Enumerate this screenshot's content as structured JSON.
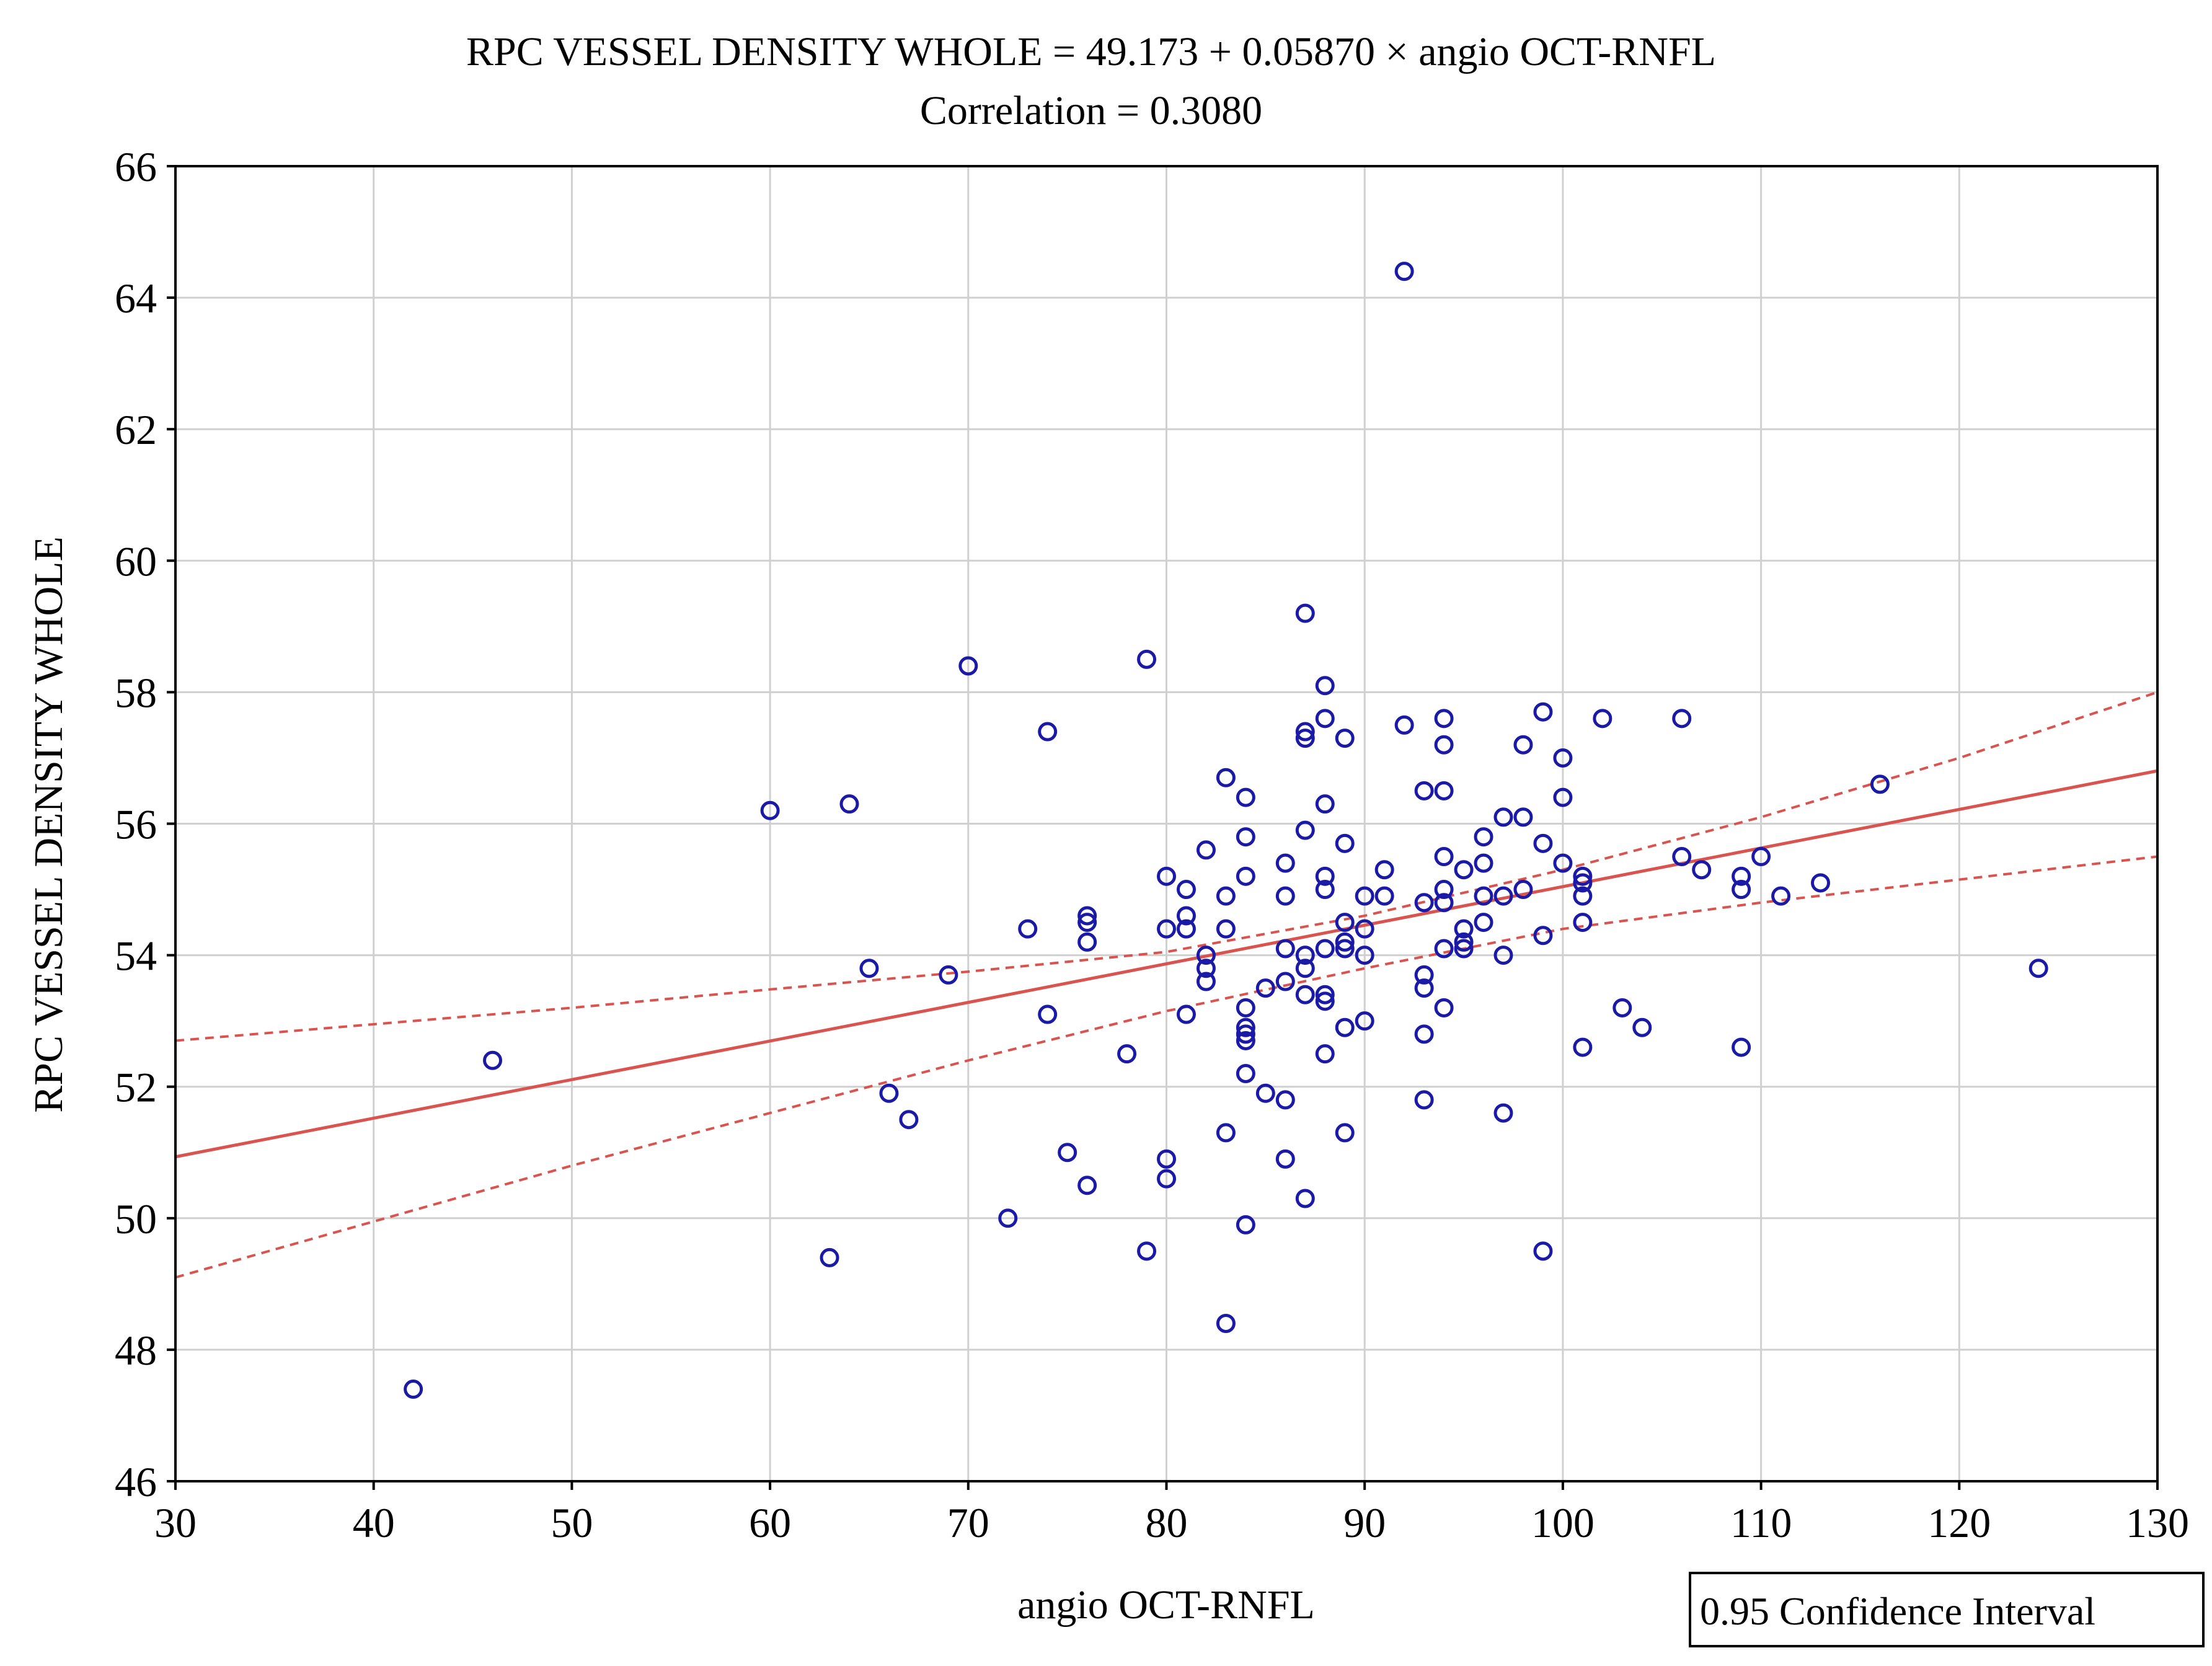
{
  "chart_data": {
    "type": "scatter",
    "title": "RPC VESSEL DENSITY WHOLE = 49.173 + 0.05870 × angio OCT-RNFL",
    "subtitle": "Correlation = 0.3080",
    "xlabel": "angio OCT-RNFL",
    "ylabel": "RPC VESSEL DENSITY WHOLE",
    "xlim": [
      30,
      130
    ],
    "ylim": [
      46,
      66
    ],
    "xticks": [
      "30",
      "40",
      "50",
      "60",
      "70",
      "80",
      "90",
      "100",
      "110",
      "120",
      "130"
    ],
    "yticks": [
      "46",
      "48",
      "50",
      "52",
      "54",
      "56",
      "58",
      "60",
      "62",
      "64",
      "66"
    ],
    "grid": true,
    "legend": {
      "label": "0.95 Confidence Interval",
      "position": "bottom-right"
    },
    "regression": {
      "intercept": 49.173,
      "slope": 0.0587
    },
    "confidence_band": {
      "x": [
        30,
        40,
        50,
        60,
        70,
        80,
        90,
        100,
        110,
        120,
        130
      ],
      "upper": [
        52.7,
        52.95,
        53.2,
        53.48,
        53.75,
        54.05,
        54.6,
        55.3,
        56.1,
        57.0,
        58.0
      ],
      "lower": [
        49.1,
        49.95,
        50.8,
        51.6,
        52.4,
        53.15,
        53.8,
        54.4,
        54.8,
        55.15,
        55.5
      ]
    },
    "series": [
      {
        "name": "observations",
        "points": [
          [
            42,
            47.4
          ],
          [
            46,
            52.4
          ],
          [
            60,
            56.2
          ],
          [
            63,
            49.4
          ],
          [
            64,
            56.3
          ],
          [
            65,
            53.8
          ],
          [
            66,
            51.9
          ],
          [
            67,
            51.5
          ],
          [
            69,
            53.7
          ],
          [
            70,
            58.4
          ],
          [
            72,
            50.0
          ],
          [
            73,
            54.4
          ],
          [
            74,
            57.4
          ],
          [
            74,
            53.1
          ],
          [
            75,
            51.0
          ],
          [
            76,
            54.6
          ],
          [
            76,
            54.5
          ],
          [
            76,
            54.2
          ],
          [
            76,
            50.5
          ],
          [
            78,
            52.5
          ],
          [
            79,
            58.5
          ],
          [
            79,
            49.5
          ],
          [
            80,
            55.2
          ],
          [
            80,
            54.4
          ],
          [
            80,
            50.9
          ],
          [
            80,
            50.6
          ],
          [
            81,
            55.0
          ],
          [
            81,
            54.6
          ],
          [
            81,
            54.4
          ],
          [
            81,
            53.1
          ],
          [
            82,
            55.6
          ],
          [
            82,
            54.0
          ],
          [
            82,
            53.8
          ],
          [
            82,
            53.6
          ],
          [
            83,
            56.7
          ],
          [
            83,
            54.9
          ],
          [
            83,
            54.4
          ],
          [
            83,
            51.3
          ],
          [
            83,
            48.4
          ],
          [
            84,
            56.4
          ],
          [
            84,
            55.8
          ],
          [
            84,
            55.2
          ],
          [
            84,
            53.2
          ],
          [
            84,
            52.9
          ],
          [
            84,
            52.8
          ],
          [
            84,
            52.7
          ],
          [
            84,
            52.2
          ],
          [
            84,
            49.9
          ],
          [
            85,
            53.5
          ],
          [
            85,
            51.9
          ],
          [
            86,
            55.4
          ],
          [
            86,
            54.9
          ],
          [
            86,
            54.1
          ],
          [
            86,
            53.6
          ],
          [
            86,
            51.8
          ],
          [
            86,
            50.9
          ],
          [
            87,
            59.2
          ],
          [
            87,
            57.4
          ],
          [
            87,
            57.3
          ],
          [
            87,
            55.9
          ],
          [
            87,
            54.0
          ],
          [
            87,
            53.8
          ],
          [
            87,
            53.4
          ],
          [
            87,
            50.3
          ],
          [
            88,
            58.1
          ],
          [
            88,
            57.6
          ],
          [
            88,
            56.3
          ],
          [
            88,
            55.2
          ],
          [
            88,
            55.0
          ],
          [
            88,
            54.1
          ],
          [
            88,
            53.4
          ],
          [
            88,
            53.3
          ],
          [
            88,
            52.5
          ],
          [
            89,
            57.3
          ],
          [
            89,
            55.7
          ],
          [
            89,
            54.5
          ],
          [
            89,
            54.2
          ],
          [
            89,
            54.1
          ],
          [
            89,
            52.9
          ],
          [
            89,
            51.3
          ],
          [
            90,
            54.9
          ],
          [
            90,
            54.4
          ],
          [
            90,
            54.0
          ],
          [
            90,
            53.0
          ],
          [
            91,
            55.3
          ],
          [
            91,
            54.9
          ],
          [
            92,
            64.4
          ],
          [
            92,
            57.5
          ],
          [
            93,
            56.5
          ],
          [
            93,
            54.8
          ],
          [
            93,
            53.7
          ],
          [
            93,
            53.5
          ],
          [
            93,
            52.8
          ],
          [
            93,
            51.8
          ],
          [
            94,
            57.6
          ],
          [
            94,
            57.2
          ],
          [
            94,
            56.5
          ],
          [
            94,
            55.5
          ],
          [
            94,
            55.0
          ],
          [
            94,
            54.8
          ],
          [
            94,
            54.1
          ],
          [
            94,
            53.2
          ],
          [
            95,
            55.3
          ],
          [
            95,
            54.4
          ],
          [
            95,
            54.2
          ],
          [
            95,
            54.1
          ],
          [
            96,
            55.8
          ],
          [
            96,
            55.4
          ],
          [
            96,
            54.9
          ],
          [
            96,
            54.5
          ],
          [
            97,
            56.1
          ],
          [
            97,
            54.9
          ],
          [
            97,
            54.0
          ],
          [
            97,
            51.6
          ],
          [
            98,
            57.2
          ],
          [
            98,
            56.1
          ],
          [
            98,
            55.0
          ],
          [
            99,
            57.7
          ],
          [
            99,
            55.7
          ],
          [
            99,
            54.3
          ],
          [
            99,
            49.5
          ],
          [
            100,
            57.0
          ],
          [
            100,
            56.4
          ],
          [
            100,
            55.4
          ],
          [
            101,
            55.2
          ],
          [
            101,
            55.1
          ],
          [
            101,
            54.9
          ],
          [
            101,
            54.5
          ],
          [
            101,
            52.6
          ],
          [
            102,
            57.6
          ],
          [
            103,
            53.2
          ],
          [
            104,
            52.9
          ],
          [
            106,
            57.6
          ],
          [
            106,
            55.5
          ],
          [
            107,
            55.3
          ],
          [
            109,
            55.2
          ],
          [
            109,
            55.0
          ],
          [
            109,
            52.6
          ],
          [
            110,
            55.5
          ],
          [
            111,
            54.9
          ],
          [
            113,
            55.1
          ],
          [
            116,
            56.6
          ],
          [
            124,
            53.8
          ]
        ]
      }
    ]
  }
}
